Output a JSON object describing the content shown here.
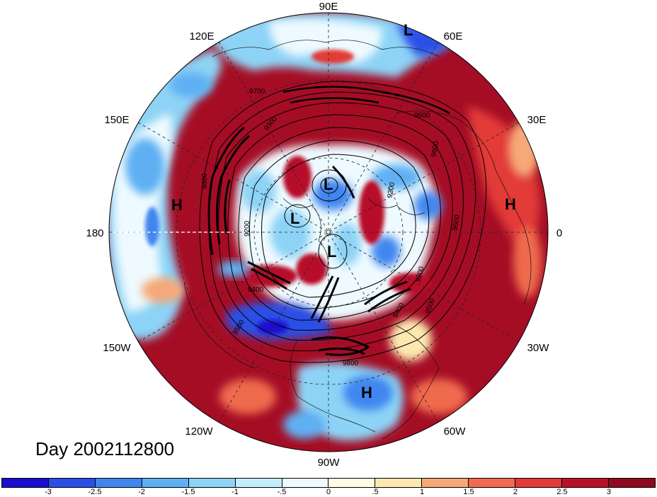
{
  "map": {
    "lon_labels": {
      "e90": "90E",
      "e120": "120E",
      "e60": "60E",
      "e150": "150E",
      "e30": "30E",
      "d180": "180",
      "d0": "0",
      "w150": "150W",
      "w30": "30W",
      "w120": "120W",
      "w60": "60W",
      "w90": "90W"
    },
    "pressure_centers": [
      {
        "id": "l-top",
        "label": "L"
      },
      {
        "id": "l-center-1",
        "label": "L"
      },
      {
        "id": "l-center-2",
        "label": "L"
      },
      {
        "id": "l-center-3",
        "label": "L"
      },
      {
        "id": "h-west",
        "label": "H"
      },
      {
        "id": "h-east",
        "label": "H"
      },
      {
        "id": "h-south",
        "label": "H"
      }
    ],
    "contour_labels": [
      "9700",
      "9600",
      "9400",
      "9300",
      "9200",
      "9400",
      "9500",
      "9400",
      "9500",
      "9600",
      "9200",
      "9300",
      "9600",
      "9800"
    ]
  },
  "day_label": "Day 2002112800",
  "colorbar": {
    "colors": [
      "#1a0fd0",
      "#2a4fe6",
      "#3f86ef",
      "#5fb0f3",
      "#8dd3f6",
      "#c4edfb",
      "#eefaff",
      "#fffbe6",
      "#fde9b0",
      "#f6a878",
      "#ef6a4e",
      "#e23a38",
      "#b8102a",
      "#8f0a20"
    ],
    "labels": [
      "-3",
      "-2.5",
      "-2",
      "-1.5",
      "-1",
      "-.5",
      "0",
      ".5",
      "1",
      "1.5",
      "2",
      "2.5",
      "3"
    ]
  }
}
